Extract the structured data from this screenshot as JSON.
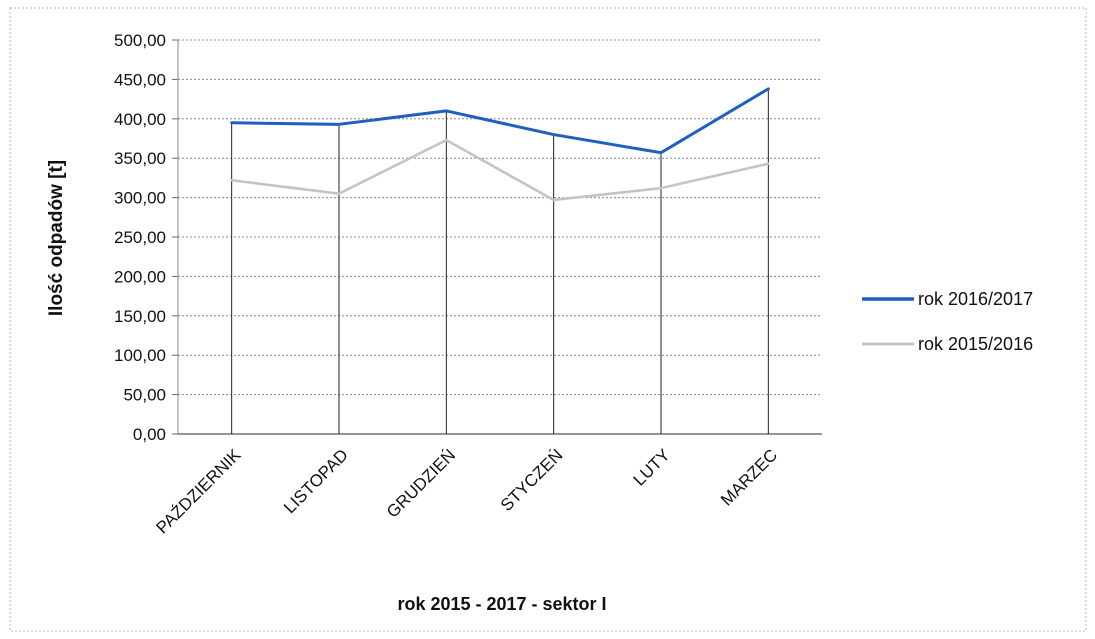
{
  "chart_data": {
    "type": "line",
    "title": "",
    "xlabel": "rok 2015 - 2017 - sektor I",
    "ylabel": "Ilość odpadów [t]",
    "categories": [
      "PAŹDZIERNIK",
      "LISTOPAD",
      "GRUDZIEŃ",
      "STYCZEŃ",
      "LUTY",
      "MARZEC"
    ],
    "ylim": [
      0,
      500
    ],
    "ytick_step": 50,
    "ytick_labels": [
      "0,00",
      "50,00",
      "100,00",
      "150,00",
      "200,00",
      "250,00",
      "300,00",
      "350,00",
      "400,00",
      "450,00",
      "500,00"
    ],
    "grid": true,
    "legend_position": "right",
    "series": [
      {
        "name": "rok 2016/2017",
        "color": "#1f5fbf",
        "values": [
          395,
          393,
          410,
          380,
          357,
          438
        ]
      },
      {
        "name": "rok 2015/2016",
        "color": "#c4c4c4",
        "values": [
          322,
          305,
          373,
          297,
          312,
          343
        ]
      }
    ]
  }
}
